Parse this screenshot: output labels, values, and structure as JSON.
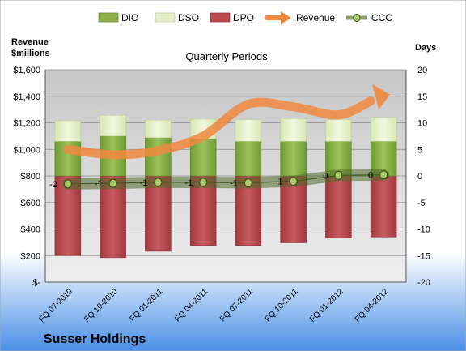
{
  "company_label": "Susser Holdings",
  "chart_data": {
    "type": "bar",
    "title": "Quarterly Periods",
    "y_left_label": "Revenue\n$millions",
    "y_right_label": "Days",
    "categories": [
      "FQ 07-2010",
      "FQ 10-2010",
      "FQ 01-2011",
      "FQ 04-2011",
      "FQ 07-2011",
      "FQ 10-2011",
      "FQ 01-2012",
      "FQ 04-2012"
    ],
    "y_left_ticks": [
      "$-",
      "$200",
      "$400",
      "$600",
      "$800",
      "$1,000",
      "$1,200",
      "$1,400",
      "$1,600"
    ],
    "y_left_range": [
      0,
      1600
    ],
    "y_right_ticks": [
      "-20",
      "-15",
      "-10",
      "-5",
      "0",
      "5",
      "10",
      "15",
      "20"
    ],
    "y_right_range": [
      -20,
      20
    ],
    "legend_position": "top",
    "grid": true,
    "series": [
      {
        "name": "DIO",
        "axis": "right",
        "kind": "stacked-bar-positive",
        "color": "#8db14b",
        "values": [
          6.5,
          7.5,
          7.2,
          7.0,
          6.5,
          6.5,
          6.5,
          6.5
        ]
      },
      {
        "name": "DSO",
        "axis": "right",
        "kind": "stacked-bar-positive",
        "color": "#e6efc9",
        "values": [
          3.9,
          3.9,
          3.3,
          3.7,
          4.1,
          4.3,
          4.1,
          4.5
        ]
      },
      {
        "name": "DPO",
        "axis": "right",
        "kind": "bar-negative",
        "color": "#b94a4f",
        "values": [
          -15,
          -15.4,
          -14.2,
          -13.1,
          -13.1,
          -12.6,
          -11.7,
          -11.5
        ]
      },
      {
        "name": "Revenue",
        "axis": "left",
        "kind": "arrow-line",
        "color": "#f0883e",
        "values": [
          1000,
          960,
          990,
          1100,
          1340,
          1320,
          1260,
          1400
        ]
      },
      {
        "name": "CCC",
        "axis": "right",
        "kind": "line-markers",
        "color": "#5c7a2e",
        "values": [
          -1.5,
          -1.4,
          -1.2,
          -1.2,
          -1.3,
          -1.0,
          0.1,
          0.2
        ],
        "labels": [
          "-2",
          "-1",
          "-1",
          "-1",
          "-1",
          "-1",
          "0",
          "0"
        ]
      }
    ]
  }
}
